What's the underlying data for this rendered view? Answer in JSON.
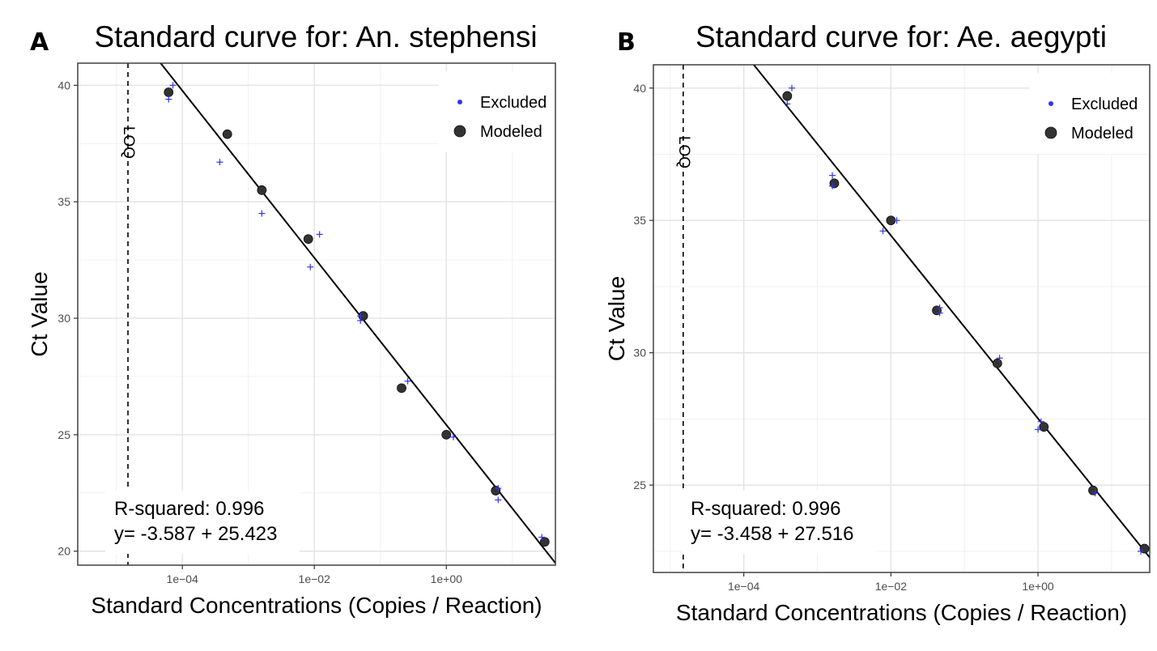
{
  "chart_data": [
    {
      "panel": "A",
      "type": "scatter",
      "title": "Standard curve for: An. stephensi",
      "xlabel": "Standard Concentrations (Copies / Reaction)",
      "ylabel": "Ct Value",
      "x_scale": "log10",
      "x_ticks": [
        0.0001,
        0.01,
        1
      ],
      "x_tick_labels": [
        "1e−04",
        "1e−02",
        "1e+00"
      ],
      "xlim": [
        2.6e-06,
        45
      ],
      "y_ticks": [
        20,
        25,
        30,
        35,
        40
      ],
      "y_tick_labels": [
        "20",
        "25",
        "30",
        "35",
        "40"
      ],
      "ylim": [
        19.4,
        40.95
      ],
      "grid": true,
      "legend": {
        "position": "top-right",
        "entries": [
          "Excluded",
          "Modeled"
        ]
      },
      "loq": {
        "label": "LOQ",
        "x": 1.5e-05
      },
      "annotations": [
        "R-squared: 0.996",
        "y= -3.587 + 25.423"
      ],
      "fit_line": {
        "slope": -3.587,
        "intercept": 25.423
      },
      "series": [
        {
          "name": "Modeled",
          "color": "#333333",
          "points": [
            [
              6.2e-05,
              39.7
            ],
            [
              0.00048,
              37.9
            ],
            [
              0.0016,
              35.5
            ],
            [
              0.0081,
              33.4
            ],
            [
              0.055,
              30.1
            ],
            [
              0.21,
              27.0
            ],
            [
              1.0,
              25.0
            ],
            [
              5.6,
              22.6
            ],
            [
              31,
              20.4
            ]
          ]
        },
        {
          "name": "Excluded",
          "color": "#3333ee",
          "points": [
            [
              7.2e-05,
              40.0
            ],
            [
              6.2e-05,
              39.4
            ],
            [
              0.00037,
              36.7
            ],
            [
              0.0016,
              34.5
            ],
            [
              0.0087,
              32.2
            ],
            [
              0.012,
              33.6
            ],
            [
              0.05,
              30.1
            ],
            [
              0.05,
              29.9
            ],
            [
              0.26,
              27.3
            ],
            [
              1.28,
              24.9
            ],
            [
              6.1,
              22.7
            ],
            [
              6.1,
              22.2
            ],
            [
              28,
              20.6
            ]
          ]
        }
      ]
    },
    {
      "panel": "B",
      "type": "scatter",
      "title": "Standard curve for: Ae. aegypti",
      "xlabel": "Standard Concentrations (Copies / Reaction)",
      "ylabel": "Ct Value",
      "x_scale": "log10",
      "x_ticks": [
        0.0001,
        0.01,
        1
      ],
      "x_tick_labels": [
        "1e−04",
        "1e−02",
        "1e+00"
      ],
      "xlim": [
        5.9e-06,
        33
      ],
      "y_ticks": [
        25,
        30,
        35,
        40
      ],
      "y_tick_labels": [
        "25",
        "30",
        "35",
        "40"
      ],
      "ylim": [
        21.7,
        40.88
      ],
      "grid": true,
      "legend": {
        "position": "top-right",
        "entries": [
          "Excluded",
          "Modeled"
        ]
      },
      "loq": {
        "label": "LOQ",
        "x": 1.5e-05
      },
      "annotations": [
        "R-squared: 0.996",
        "y= -3.458 + 27.516"
      ],
      "fit_line": {
        "slope": -3.458,
        "intercept": 27.516
      },
      "series": [
        {
          "name": "Modeled",
          "color": "#333333",
          "points": [
            [
              0.00039,
              39.7
            ],
            [
              0.0017,
              36.4
            ],
            [
              0.01,
              35.0
            ],
            [
              0.042,
              31.6
            ],
            [
              0.28,
              29.6
            ],
            [
              1.2,
              27.2
            ],
            [
              5.6,
              24.8
            ],
            [
              28,
              22.6
            ]
          ]
        },
        {
          "name": "Excluded",
          "color": "#3333ee",
          "points": [
            [
              0.00045,
              40.0
            ],
            [
              0.00039,
              39.4
            ],
            [
              0.0016,
              36.7
            ],
            [
              0.0016,
              36.3
            ],
            [
              0.0078,
              34.6
            ],
            [
              0.012,
              35.0
            ],
            [
              0.046,
              31.7
            ],
            [
              0.046,
              31.5
            ],
            [
              0.3,
              29.8
            ],
            [
              1.0,
              27.1
            ],
            [
              1.1,
              27.4
            ],
            [
              6.0,
              24.7
            ],
            [
              25,
              22.5
            ]
          ]
        }
      ]
    }
  ]
}
